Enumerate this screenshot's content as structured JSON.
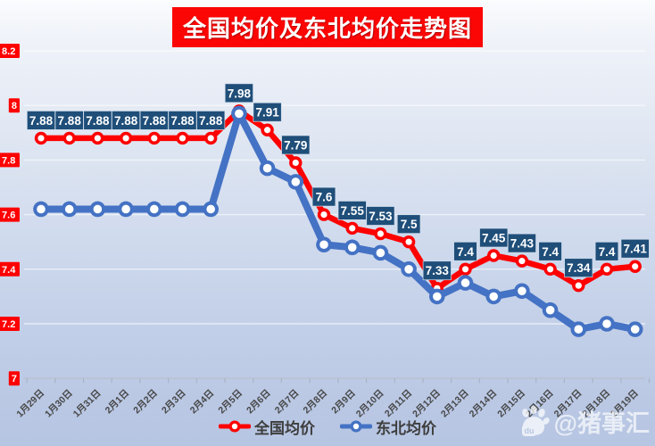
{
  "title": "全国均价及东北均价走势图",
  "watermark": {
    "text": "@猪事汇",
    "paw_label": "du"
  },
  "colors": {
    "title_bg": "#fb0505",
    "national_line": "#fe0000",
    "northeast_line": "#4472c4",
    "data_label_box": "#1f4e79",
    "ytick_badge_bg": "#fe0000",
    "marker_fill": "#ffffff"
  },
  "chart_data": {
    "type": "line",
    "title": "全国均价及东北均价走势图",
    "categories": [
      "1月29日",
      "1月30日",
      "1月31日",
      "2月1日",
      "2月2日",
      "2月3日",
      "2月4日",
      "2月5日",
      "2月6日",
      "2月7日",
      "2月8日",
      "2月9日",
      "2月10日",
      "2月11日",
      "2月12日",
      "2月13日",
      "2月14日",
      "2月15日",
      "2月16日",
      "2月17日",
      "2月18日",
      "2月19日"
    ],
    "series": [
      {
        "name": "全国均价",
        "color": "#fe0000",
        "values": [
          7.88,
          7.88,
          7.88,
          7.88,
          7.88,
          7.88,
          7.88,
          7.98,
          7.91,
          7.79,
          7.6,
          7.55,
          7.53,
          7.5,
          7.33,
          7.4,
          7.45,
          7.43,
          7.4,
          7.34,
          7.4,
          7.41
        ],
        "labels": [
          "7.88",
          "7.88",
          "7.88",
          "7.88",
          "7.88",
          "7.88",
          "7.88",
          "7.98",
          "7.91",
          "7.79",
          "7.6",
          "7.55",
          "7.53",
          "7.5",
          "7.33",
          "7.4",
          "7.45",
          "7.43",
          "7.4",
          "7.34",
          "7.4",
          "7.41"
        ]
      },
      {
        "name": "东北均价",
        "color": "#4472c4",
        "values": [
          7.62,
          7.62,
          7.62,
          7.62,
          7.62,
          7.62,
          7.62,
          7.97,
          7.77,
          7.72,
          7.49,
          7.48,
          7.46,
          7.4,
          7.3,
          7.35,
          7.3,
          7.32,
          7.25,
          7.18,
          7.2,
          7.18
        ]
      }
    ],
    "ylim": [
      7.0,
      8.2
    ],
    "ytick_values": [
      8.2,
      8.0,
      7.8,
      7.6,
      7.4,
      7.2,
      7.0
    ],
    "yticks": [
      "8.2",
      "8",
      "7.8",
      "7.6",
      "7.4",
      "7.2",
      "7"
    ],
    "grid": true,
    "legend_position": "bottom"
  }
}
